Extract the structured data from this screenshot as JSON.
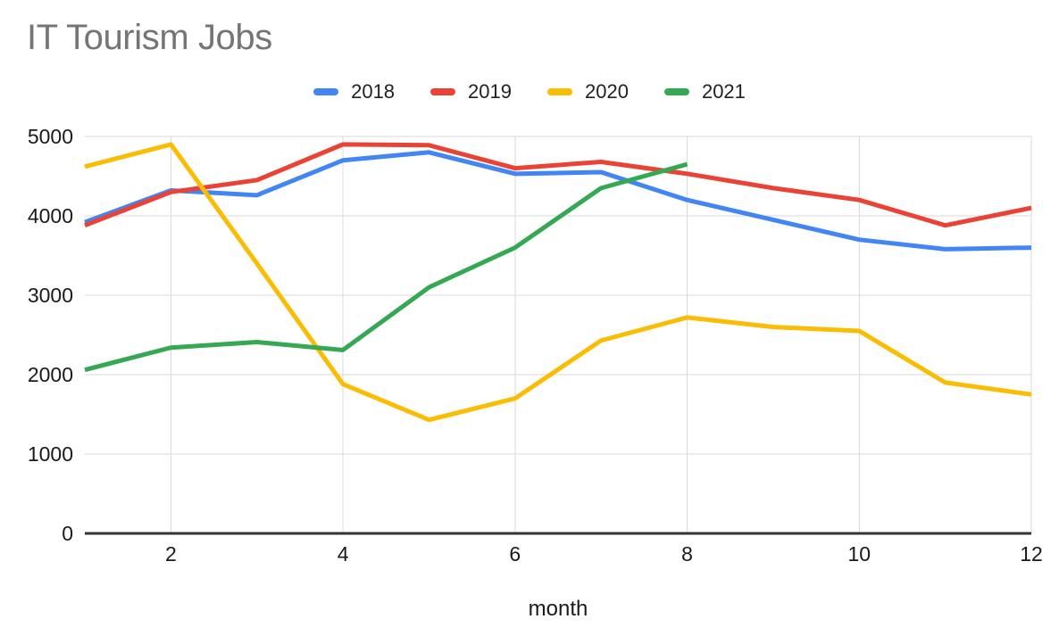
{
  "chart_data": {
    "type": "line",
    "title": "IT Tourism Jobs",
    "xlabel": "month",
    "ylabel": "",
    "x": [
      1,
      2,
      3,
      4,
      5,
      6,
      7,
      8,
      9,
      10,
      11,
      12
    ],
    "xlim": [
      1,
      12
    ],
    "ylim": [
      0,
      5000
    ],
    "x_ticks": [
      2,
      4,
      6,
      8,
      10,
      12
    ],
    "y_ticks": [
      0,
      1000,
      2000,
      3000,
      4000,
      5000
    ],
    "grid": true,
    "legend_position": "top",
    "series": [
      {
        "name": "2018",
        "color": "#4285F4",
        "values": [
          3920,
          4320,
          4260,
          4700,
          4800,
          4530,
          4550,
          4200,
          3950,
          3700,
          3580,
          3600
        ]
      },
      {
        "name": "2019",
        "color": "#EA4335",
        "values": [
          3880,
          4300,
          4450,
          4900,
          4890,
          4600,
          4680,
          4530,
          4350,
          4200,
          3880,
          4100
        ]
      },
      {
        "name": "2020",
        "color": "#FBBC04",
        "values": [
          4620,
          4900,
          3400,
          1880,
          1430,
          1700,
          2430,
          2720,
          2600,
          2550,
          1900,
          1750
        ]
      },
      {
        "name": "2021",
        "color": "#34A853",
        "values": [
          2060,
          2340,
          2410,
          2310,
          3100,
          3600,
          4350,
          4650
        ]
      }
    ],
    "style": {
      "title_color": "#757575",
      "tick_label_color": "#1a1a1a",
      "gridline_color": "#dadada",
      "baseline_color": "#333333",
      "background_color": "#ffffff"
    }
  }
}
